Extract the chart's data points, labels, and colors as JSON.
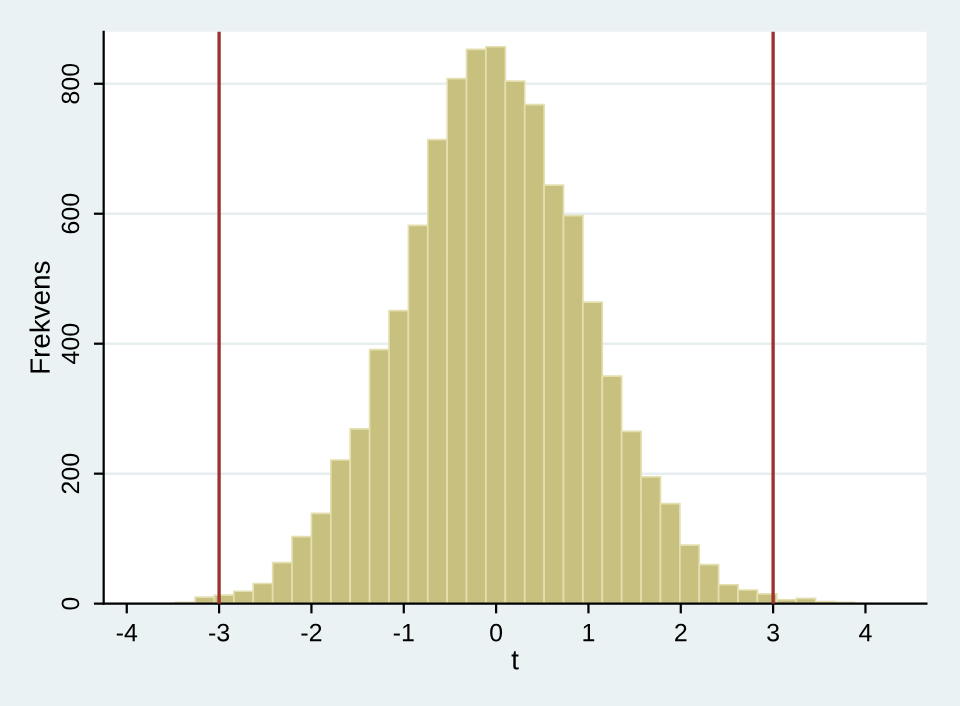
{
  "chart_data": {
    "type": "histogram",
    "xlabel": "t",
    "ylabel": "Frekvens",
    "bins": [
      -3.89,
      -3.68,
      -3.47,
      -3.26,
      -3.05,
      -2.84,
      -2.63,
      -2.42,
      -2.21,
      -2.0,
      -1.79,
      -1.58,
      -1.37,
      -1.16,
      -0.95,
      -0.74,
      -0.53,
      -0.32,
      -0.11,
      0.1,
      0.31,
      0.52,
      0.73,
      0.94,
      1.15,
      1.36,
      1.57,
      1.78,
      1.99,
      2.2,
      2.41,
      2.62,
      2.83,
      3.04,
      3.25,
      3.46,
      3.67,
      3.88,
      4.09,
      4.3,
      4.51
    ],
    "values": [
      null,
      null,
      2,
      10,
      13,
      19,
      31,
      63,
      103,
      139,
      221,
      269,
      391,
      451,
      582,
      714,
      808,
      853,
      857,
      804,
      768,
      644,
      597,
      464,
      350,
      265,
      195,
      154,
      90,
      60,
      29,
      21,
      15,
      6,
      8,
      3,
      2,
      null,
      null,
      null
    ],
    "color": "#c8c07e",
    "xlim": [
      -4.25,
      4.66
    ],
    "ylim": [
      0,
      880
    ],
    "xticks": [
      -4,
      -3,
      -2,
      -1,
      0,
      1,
      2,
      3,
      4
    ],
    "yticks": [
      0,
      200,
      400,
      600,
      800
    ],
    "grid": "y",
    "ref_lines": [
      {
        "axis": "x",
        "value": -3,
        "color": "#a03030"
      },
      {
        "axis": "x",
        "value": 3,
        "color": "#a03030"
      }
    ]
  }
}
